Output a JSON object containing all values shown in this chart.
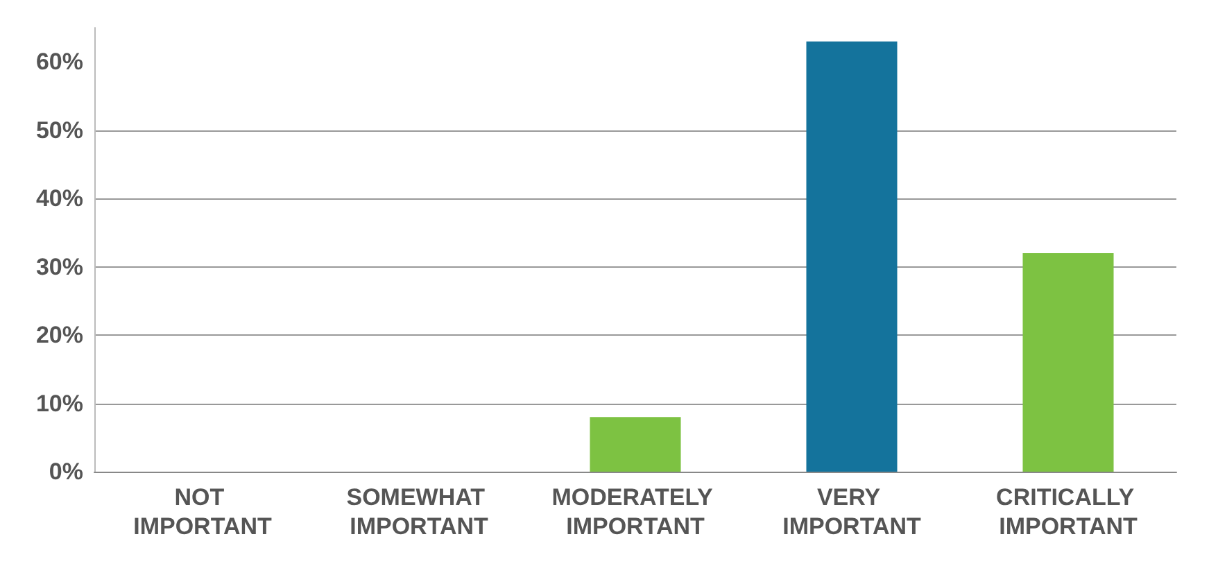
{
  "chart_data": {
    "type": "bar",
    "categories": [
      "NOT IMPORTANT",
      "SOMEWHAT IMPORTANT",
      "MODERATELY IMPORTANT",
      "VERY IMPORTANT",
      "CRITICALLY IMPORTANT"
    ],
    "values": [
      0,
      0,
      8,
      63,
      32
    ],
    "colors": [
      "#7dc242",
      "#7dc242",
      "#7dc242",
      "#14739c",
      "#7dc242"
    ],
    "ylim": [
      0,
      65
    ],
    "yticks": [
      {
        "value": 0,
        "label": "0%"
      },
      {
        "value": 10,
        "label": "10%"
      },
      {
        "value": 20,
        "label": "20%"
      },
      {
        "value": 30,
        "label": "30%"
      },
      {
        "value": 40,
        "label": "40%"
      },
      {
        "value": 50,
        "label": "50%"
      },
      {
        "value": 60,
        "label": "60%"
      }
    ],
    "grid": "y"
  }
}
